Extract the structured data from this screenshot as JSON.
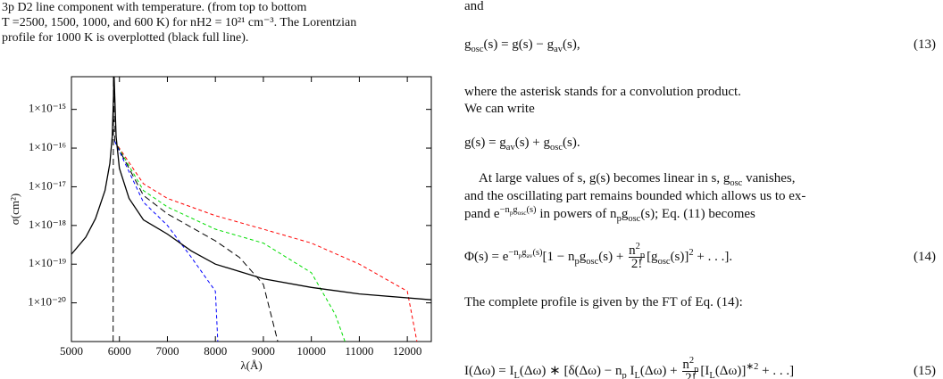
{
  "caption": [
    "3p D2 line component with temperature. (from top to bottom",
    "T =2500, 1500, 1000, and 600 K) for nH2 = 10²¹ cm⁻³. The Lorentzian",
    "profile for 1000 K is overplotted (black full line)."
  ],
  "chart_data": {
    "type": "line",
    "x_label": "λ(Å)",
    "y_label": "σ(cm²)",
    "xlim": [
      5000,
      12500
    ],
    "xticks": [
      5000,
      6000,
      7000,
      8000,
      9000,
      10000,
      11000,
      12000
    ],
    "ylim": [
      1e-21,
      7e-15
    ],
    "y_log": true,
    "yticks": [
      {
        "value": 1e-20,
        "label": "1×10⁻²⁰"
      },
      {
        "value": 1e-19,
        "label": "1×10⁻¹⁹"
      },
      {
        "value": 1e-18,
        "label": "1×10⁻¹⁸"
      },
      {
        "value": 1e-17,
        "label": "1×10⁻¹⁷"
      },
      {
        "value": 1e-16,
        "label": "1×10⁻¹⁶"
      },
      {
        "value": 1e-15,
        "label": "1×10⁻¹⁵"
      }
    ],
    "series": [
      {
        "color": "#ff0000",
        "dash": true,
        "x": [
          5900,
          6500,
          7000,
          8000,
          9000,
          10000,
          11000,
          12000,
          12200
        ],
        "values": [
          1.5e-16,
          1.2e-17,
          5e-18,
          1.8e-18,
          8e-19,
          3.5e-19,
          1e-19,
          2e-20,
          1e-21
        ]
      },
      {
        "color": "#00dd00",
        "dash": true,
        "x": [
          5900,
          6500,
          7000,
          8000,
          9000,
          10000,
          10500,
          10700
        ],
        "values": [
          1.5e-16,
          8e-18,
          3e-18,
          8e-19,
          3.5e-19,
          6e-20,
          5e-21,
          1e-21
        ]
      },
      {
        "color": "#000000",
        "dash": true,
        "x": [
          5870,
          5875,
          5900,
          6500,
          7000,
          8000,
          8500,
          9000,
          9300
        ],
        "values": [
          1e-21,
          7e-15,
          1.5e-16,
          6e-18,
          2e-18,
          4e-19,
          1.5e-19,
          3e-20,
          1e-21
        ]
      },
      {
        "color": "#0000ff",
        "dash": true,
        "x": [
          5900,
          6500,
          7000,
          7500,
          8000,
          8050
        ],
        "values": [
          1.5e-16,
          4e-18,
          1e-18,
          1.5e-19,
          2e-20,
          1e-21
        ]
      },
      {
        "color": "#000000",
        "dash": false,
        "x": [
          5000,
          5300,
          5500,
          5700,
          5800,
          5850,
          5890,
          5930,
          6000,
          6200,
          6500,
          7000,
          7500,
          8000,
          9000,
          10000,
          11000,
          12500
        ],
        "values": [
          1.8e-19,
          5e-19,
          1.5e-18,
          8e-18,
          4e-17,
          2e-16,
          7e-15,
          2e-16,
          3e-17,
          5e-18,
          1.4e-18,
          6e-19,
          2.2e-19,
          1e-19,
          4.2e-20,
          2.5e-20,
          1.7e-20,
          1.2e-20
        ]
      }
    ]
  },
  "text": {
    "l0": "and",
    "eq13": [
      "g",
      "osc",
      "(s) = g(s) − g",
      "av",
      "(s),"
    ],
    "eq13_num": "(13)",
    "p1": [
      "where the asterisk stands for a convolution product.",
      "We can write"
    ],
    "eq": [
      "g(s) = g",
      "av",
      "(s) + g",
      "osc",
      "(s)."
    ],
    "p2a": [
      "At large values of s, g(s) becomes linear in s, g",
      "osc",
      " vanishes,"
    ],
    "p2b": "and the oscillating part remains bounded which allows us to ex-",
    "p2c": [
      "pand e",
      "−n",
      "p",
      "g",
      "osc",
      "(s)",
      " in powers of n",
      "p",
      "g",
      "osc",
      "(s); Eq. (11) becomes"
    ],
    "eq14": [
      "Φ(s) = e",
      "−n",
      "p",
      "g",
      "av",
      "(s)",
      "[1 − n",
      "p",
      "g",
      "osc",
      "(s) + ",
      "n",
      "p",
      "2",
      "2!",
      "[g",
      "osc",
      "(s)]",
      "2",
      " + . . .]."
    ],
    "eq14_num": "(14)",
    "p3": "The complete profile is given by the FT of Eq. (14):",
    "eq15": [
      "I(Δω) = I",
      "L",
      "(Δω) ∗ [δ(Δω) − n",
      "p",
      " I",
      "L",
      "(Δω) + ",
      "n",
      "p",
      "2",
      "2!",
      "[I",
      "L",
      "(Δω)]",
      "∗2",
      " + . . .]"
    ],
    "eq15_num": "(15)"
  }
}
